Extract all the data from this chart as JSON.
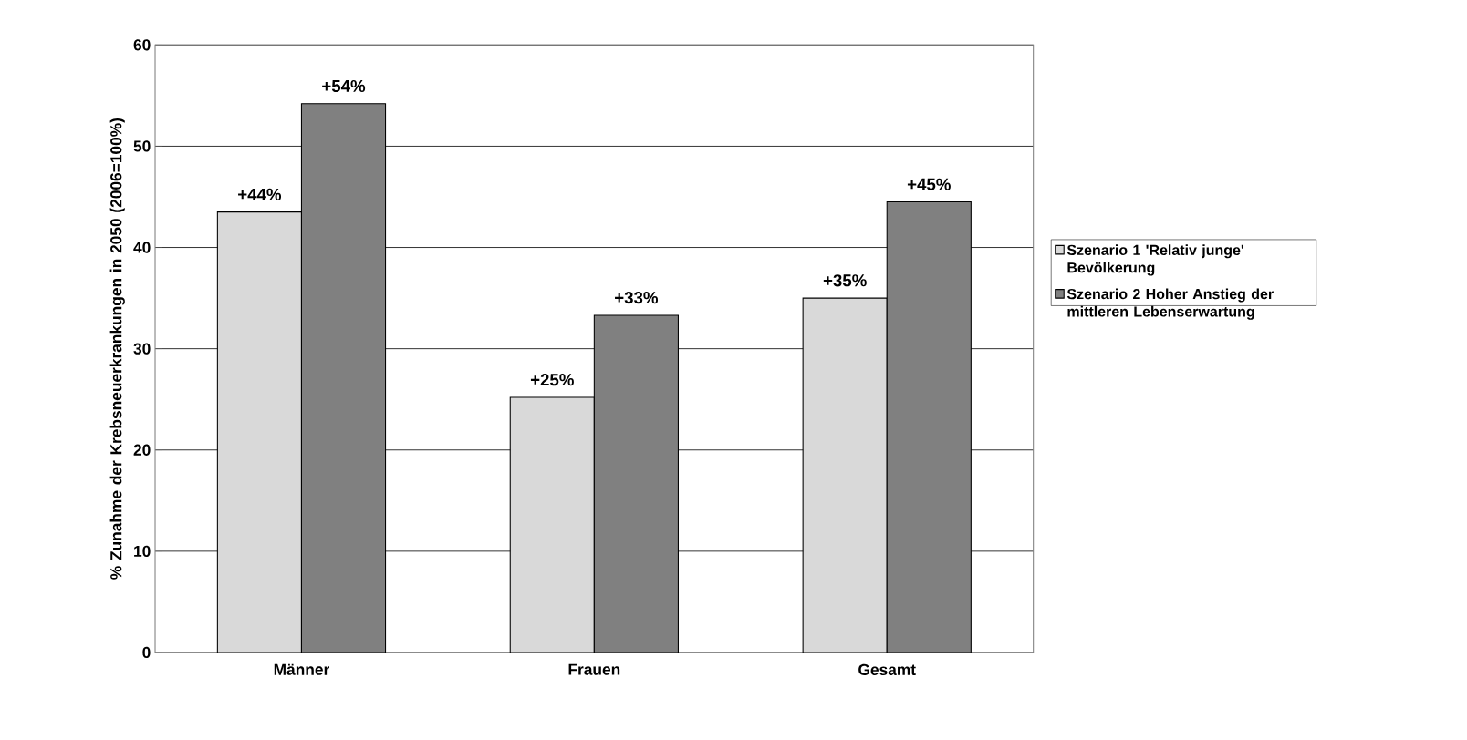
{
  "chart_data": {
    "type": "bar",
    "ylabel": "% Zunahme der Krebsneuerkrankungen in 2050 (2006=100%)",
    "categories": [
      "Männer",
      "Frauen",
      "Gesamt"
    ],
    "series": [
      {
        "name": "Szenario 1 'Relativ junge' Bevölkerung",
        "color": "#d9d9d9",
        "values": [
          43.5,
          25.2,
          35.0
        ],
        "value_labels": [
          "+44%",
          "+25%",
          "+35%"
        ]
      },
      {
        "name": "Szenario 2 Hoher Anstieg der mittleren Lebenserwartung",
        "color": "#808080",
        "values": [
          54.2,
          33.3,
          44.5
        ],
        "value_labels": [
          "+54%",
          "+33%",
          "+45%"
        ]
      }
    ],
    "ylim": [
      0,
      60
    ],
    "yticks": [
      0,
      10,
      20,
      30,
      40,
      50,
      60
    ],
    "grid": "y",
    "legend": "right"
  }
}
